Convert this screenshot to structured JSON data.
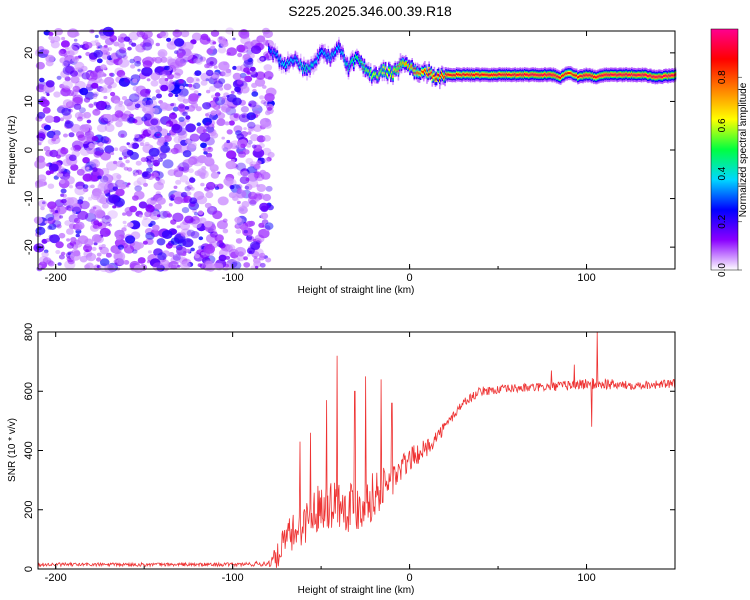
{
  "title": "S225.2025.346.00.39.R18",
  "chart_data": [
    {
      "type": "heatmap",
      "xlabel": "Height of straight line (km)",
      "ylabel": "Frequency (Hz)",
      "xlim": [
        -210,
        150
      ],
      "ylim": [
        -24.5,
        24.5
      ],
      "x_ticks": [
        -200,
        -100,
        0,
        100
      ],
      "y_ticks": [
        -20,
        -10,
        0,
        10,
        20
      ],
      "colorbar": {
        "label": "Normalized spectral amplitude",
        "range": [
          0,
          1
        ],
        "ticks": [
          "0.0",
          "0.2",
          "0.4",
          "0.6",
          "0.8"
        ],
        "tick_values": [
          0,
          0.2,
          0.4,
          0.6,
          0.8
        ],
        "colors": [
          "#ffffff",
          "#8a00ff",
          "#0000ff",
          "#00d8ff",
          "#00ff40",
          "#ffff00",
          "#ff8000",
          "#ff0000",
          "#ff0090"
        ]
      },
      "noise_region": {
        "x": [
          -210,
          -78
        ],
        "amplitude": 0.15
      },
      "signal_ridge": {
        "x": [
          -80,
          -75,
          -70,
          -65,
          -60,
          -55,
          -50,
          -45,
          -40,
          -35,
          -30,
          -25,
          -20,
          -15,
          -10,
          -5,
          0,
          5,
          10,
          15,
          20,
          30,
          40,
          50,
          60,
          70,
          80,
          85,
          90,
          95,
          100,
          105,
          110,
          120,
          130,
          140,
          150
        ],
        "freq": [
          20.5,
          19,
          17.5,
          18.5,
          16.5,
          17.5,
          20.5,
          19,
          21,
          17,
          19,
          16.5,
          15,
          16.5,
          15.5,
          17.5,
          17,
          15.5,
          16,
          15,
          15.5,
          15.5,
          15.5,
          15.5,
          15.5,
          15.5,
          15.5,
          15,
          16,
          15,
          15.5,
          15,
          15.5,
          15.5,
          15.5,
          15,
          15.5
        ],
        "amplitude": [
          0.3,
          0.35,
          0.4,
          0.35,
          0.45,
          0.4,
          0.35,
          0.4,
          0.35,
          0.45,
          0.5,
          0.55,
          0.6,
          0.6,
          0.65,
          0.7,
          0.75,
          0.8,
          0.85,
          0.85,
          0.9,
          0.9,
          0.9,
          0.92,
          0.92,
          0.95,
          0.95,
          0.9,
          0.85,
          0.9,
          0.95,
          0.9,
          0.95,
          0.95,
          0.95,
          0.95,
          0.95
        ]
      }
    },
    {
      "type": "line",
      "xlabel": "Height of straight line (km)",
      "ylabel": "SNR (10 * v/v)",
      "xlim": [
        -210,
        150
      ],
      "ylim": [
        0,
        800
      ],
      "x_ticks": [
        -200,
        -100,
        0,
        100
      ],
      "y_ticks": [
        0,
        200,
        400,
        600,
        800
      ],
      "color": "#ee3333",
      "series": [
        {
          "x": [
            -210,
            -100,
            -80,
            -75,
            -70,
            -60,
            -50,
            -40,
            -30,
            -20,
            -10,
            0,
            10,
            20,
            30,
            40,
            60,
            80,
            100,
            110,
            120,
            150
          ],
          "y": [
            15,
            15,
            18,
            40,
            100,
            150,
            220,
            220,
            210,
            250,
            300,
            370,
            410,
            480,
            560,
            600,
            610,
            615,
            625,
            625,
            620,
            625
          ],
          "spread": [
            6,
            6,
            10,
            40,
            60,
            70,
            80,
            90,
            90,
            80,
            60,
            40,
            30,
            20,
            15,
            15,
            15,
            15,
            20,
            20,
            15,
            15
          ],
          "spikes": [
            [
              -41,
              720
            ],
            [
              -47,
              570
            ],
            [
              -31,
              600
            ],
            [
              -25,
              650
            ],
            [
              -16,
              640
            ],
            [
              -10,
              560
            ],
            [
              -56,
              460
            ],
            [
              -62,
              430
            ],
            [
              106,
              800
            ],
            [
              103,
              480
            ],
            [
              93,
              690
            ],
            [
              80,
              670
            ]
          ]
        }
      ]
    }
  ]
}
